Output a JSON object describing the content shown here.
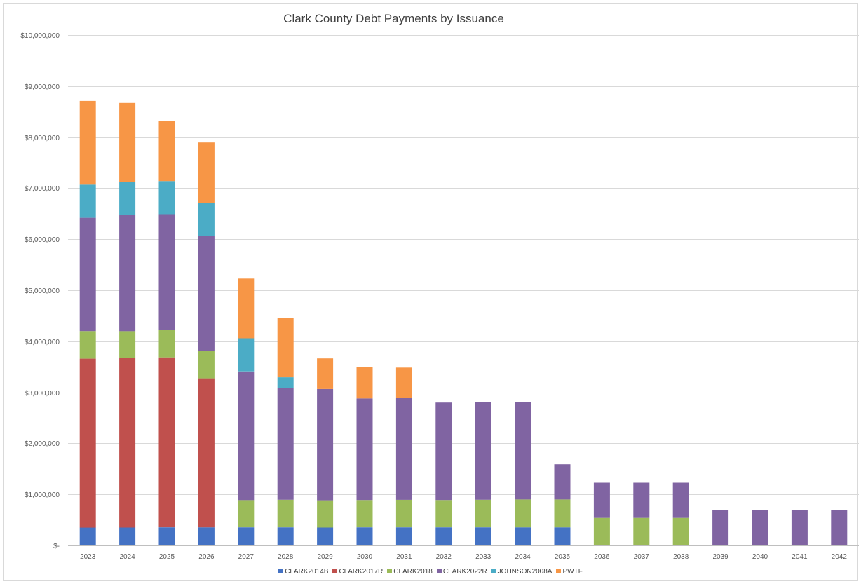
{
  "chart_data": {
    "type": "bar",
    "stacked": true,
    "title": "Clark County Debt Payments by Issuance",
    "categories": [
      "2023",
      "2024",
      "2025",
      "2026",
      "2027",
      "2028",
      "2029",
      "2030",
      "2031",
      "2032",
      "2033",
      "2034",
      "2035",
      "2036",
      "2037",
      "2038",
      "2039",
      "2040",
      "2041",
      "2042"
    ],
    "ylim": [
      0,
      10000000
    ],
    "yticks": [
      {
        "value": 0,
        "label": "$-"
      },
      {
        "value": 1000000,
        "label": "$1,000,000"
      },
      {
        "value": 2000000,
        "label": "$2,000,000"
      },
      {
        "value": 3000000,
        "label": "$3,000,000"
      },
      {
        "value": 4000000,
        "label": "$4,000,000"
      },
      {
        "value": 5000000,
        "label": "$5,000,000"
      },
      {
        "value": 6000000,
        "label": "$6,000,000"
      },
      {
        "value": 7000000,
        "label": "$7,000,000"
      },
      {
        "value": 8000000,
        "label": "$8,000,000"
      },
      {
        "value": 9000000,
        "label": "$9,000,000"
      },
      {
        "value": 10000000,
        "label": "$10,000,000"
      }
    ],
    "grid": true,
    "legend_position": "bottom",
    "series": [
      {
        "name": "CLARK2014B",
        "color": "#4472c4",
        "values": [
          350000,
          350000,
          355000,
          355000,
          355000,
          355000,
          350000,
          355000,
          355000,
          355000,
          355000,
          355000,
          355000,
          0,
          0,
          0,
          0,
          0,
          0,
          0
        ]
      },
      {
        "name": "CLARK2017R",
        "color": "#c0504d",
        "values": [
          3310000,
          3320000,
          3330000,
          2920000,
          0,
          0,
          0,
          0,
          0,
          0,
          0,
          0,
          0,
          0,
          0,
          0,
          0,
          0,
          0,
          0
        ]
      },
      {
        "name": "CLARK2018",
        "color": "#9bbb59",
        "values": [
          540000,
          530000,
          535000,
          540000,
          535000,
          540000,
          535000,
          535000,
          540000,
          535000,
          540000,
          545000,
          545000,
          540000,
          540000,
          540000,
          0,
          0,
          0,
          0
        ]
      },
      {
        "name": "CLARK2022R",
        "color": "#8064a2",
        "values": [
          2220000,
          2270000,
          2270000,
          2250000,
          2520000,
          2190000,
          2180000,
          1990000,
          1990000,
          1910000,
          1910000,
          1910000,
          690000,
          690000,
          690000,
          690000,
          700000,
          700000,
          700000,
          700000
        ]
      },
      {
        "name": "JOHNSON2008A",
        "color": "#4bacc6",
        "values": [
          650000,
          650000,
          650000,
          650000,
          650000,
          210000,
          0,
          0,
          0,
          0,
          0,
          0,
          0,
          0,
          0,
          0,
          0,
          0,
          0,
          0
        ]
      },
      {
        "name": "PWTF",
        "color": "#f79646",
        "values": [
          1640000,
          1550000,
          1180000,
          1180000,
          1170000,
          1160000,
          600000,
          610000,
          600000,
          0,
          0,
          0,
          0,
          0,
          0,
          0,
          0,
          0,
          0,
          0
        ]
      }
    ]
  }
}
